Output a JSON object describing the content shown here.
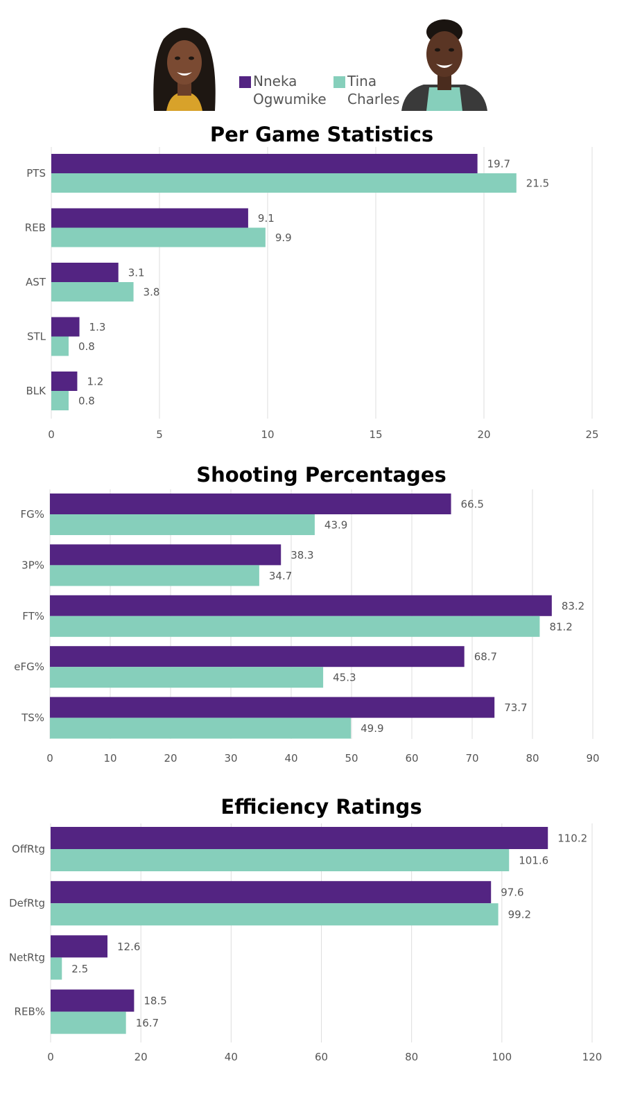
{
  "legend": {
    "players": [
      {
        "name_line1": "Nneka",
        "name_line2": "Ogwumike",
        "color": "#532482"
      },
      {
        "name_line1": "Tina",
        "name_line2": "Charles",
        "color": "#86cfbb"
      }
    ]
  },
  "chart_data": [
    {
      "type": "bar",
      "orientation": "horizontal",
      "title": "Per Game Statistics",
      "categories": [
        "PTS",
        "REB",
        "AST",
        "STL",
        "BLK"
      ],
      "series": [
        {
          "name": "Nneka Ogwumike",
          "values": [
            19.7,
            9.1,
            3.1,
            1.3,
            1.2
          ]
        },
        {
          "name": "Tina Charles",
          "values": [
            21.5,
            9.9,
            3.8,
            0.8,
            0.8
          ]
        }
      ],
      "value_labels": [
        [
          "19.7",
          "9.1",
          "3.1",
          "1.3",
          "1.2"
        ],
        [
          "21.5",
          "9.9",
          "3.8",
          "0.8",
          "0.8"
        ]
      ],
      "xlim": [
        0,
        25
      ],
      "xticks": [
        0,
        5,
        10,
        15,
        20,
        25
      ],
      "xtick_labels": [
        "0",
        "5",
        "10",
        "15",
        "20",
        "25"
      ],
      "grid": true
    },
    {
      "type": "bar",
      "orientation": "horizontal",
      "title": "Shooting Percentages",
      "categories": [
        "FG%",
        "3P%",
        "FT%",
        "eFG%",
        "TS%"
      ],
      "series": [
        {
          "name": "Nneka Ogwumike",
          "values": [
            66.5,
            38.3,
            83.2,
            68.7,
            73.7
          ]
        },
        {
          "name": "Tina Charles",
          "values": [
            43.9,
            34.7,
            81.2,
            45.3,
            49.9
          ]
        }
      ],
      "value_labels": [
        [
          "66.5",
          "38.3",
          "83.2",
          "68.7",
          "73.7"
        ],
        [
          "43.9",
          "34.7",
          "81.2",
          "45.3",
          "49.9"
        ]
      ],
      "xlim": [
        0,
        90
      ],
      "xticks": [
        0,
        10,
        20,
        30,
        40,
        50,
        60,
        70,
        80,
        90
      ],
      "xtick_labels": [
        "0",
        "10",
        "20",
        "30",
        "40",
        "50",
        "60",
        "70",
        "80",
        "90"
      ],
      "grid": true
    },
    {
      "type": "bar",
      "orientation": "horizontal",
      "title": "Efficiency Ratings",
      "categories": [
        "OffRtg",
        "DefRtg",
        "NetRtg",
        "REB%"
      ],
      "series": [
        {
          "name": "Nneka Ogwumike",
          "values": [
            110.2,
            97.6,
            12.6,
            18.5
          ]
        },
        {
          "name": "Tina Charles",
          "values": [
            101.6,
            99.2,
            2.5,
            16.7
          ]
        }
      ],
      "value_labels": [
        [
          "110.2",
          "97.6",
          "12.6",
          "18.5"
        ],
        [
          "101.6",
          "99.2",
          "2.5",
          "16.7"
        ]
      ],
      "xlim": [
        0,
        120
      ],
      "xticks": [
        0,
        20,
        40,
        60,
        80,
        100,
        120
      ],
      "xtick_labels": [
        "0",
        "20",
        "40",
        "60",
        "80",
        "100",
        "120"
      ],
      "grid": true
    }
  ]
}
